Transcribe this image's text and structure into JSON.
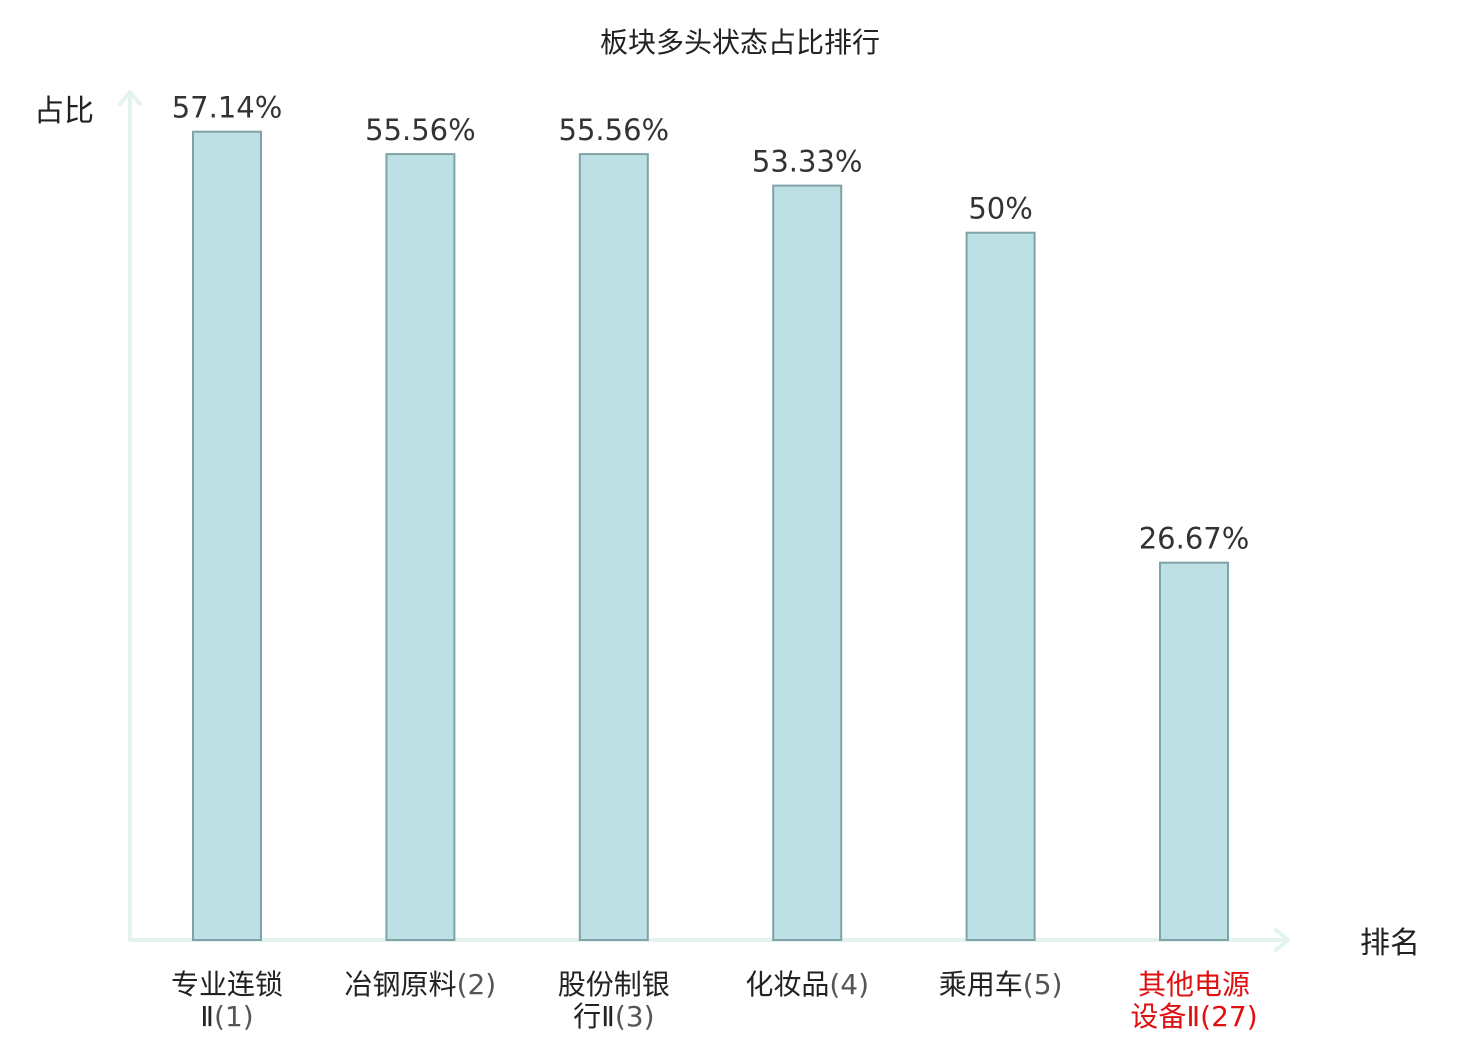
{
  "chart_data": {
    "type": "bar",
    "title": "板块多头状态占比排行",
    "ylabel": "占比",
    "xlabel": "排名",
    "ylim": [
      0,
      60
    ],
    "grid": false,
    "categories": [
      {
        "name_lines": [
          "专业连锁",
          "Ⅱ"
        ],
        "rank": "(1)",
        "highlight": false
      },
      {
        "name_lines": [
          "冶钢原料"
        ],
        "rank": "(2)",
        "highlight": false
      },
      {
        "name_lines": [
          "股份制银",
          "行Ⅱ"
        ],
        "rank": "(3)",
        "highlight": false
      },
      {
        "name_lines": [
          "化妆品"
        ],
        "rank": "(4)",
        "highlight": false
      },
      {
        "name_lines": [
          "乘用车"
        ],
        "rank": "(5)",
        "highlight": false
      },
      {
        "name_lines": [
          "其他电源",
          "设备Ⅱ"
        ],
        "rank": "(27)",
        "highlight": true
      }
    ],
    "values": [
      57.14,
      55.56,
      55.56,
      53.33,
      50,
      26.67
    ],
    "value_labels": [
      "57.14%",
      "55.56%",
      "55.56%",
      "53.33%",
      "50%",
      "26.67%"
    ],
    "colors": {
      "bar_fill": "#bce0e3",
      "bar_stroke": "#7fa3a6",
      "axis": "#e3f3f0",
      "highlight_text": "#e01010"
    }
  }
}
